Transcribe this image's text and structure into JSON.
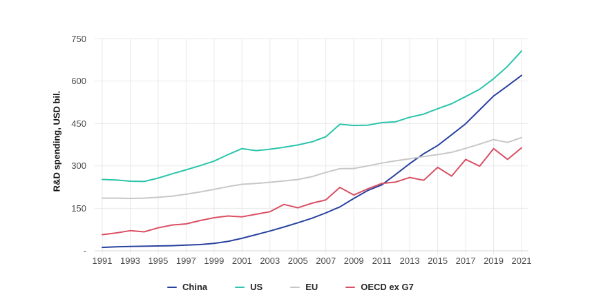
{
  "chart": {
    "y_axis": {
      "title": "R&D spending, USD bil.",
      "ticks": [
        {
          "label": "-",
          "value": 0
        },
        {
          "label": "150",
          "value": 150
        },
        {
          "label": "300",
          "value": 300
        },
        {
          "label": "450",
          "value": 450
        },
        {
          "label": "600",
          "value": 600
        },
        {
          "label": "750",
          "value": 750
        }
      ]
    },
    "x_axis": {
      "tick_labels": [
        "1991",
        "1993",
        "1995",
        "1997",
        "1999",
        "2001",
        "2003",
        "2005",
        "2007",
        "2009",
        "2011",
        "2013",
        "2015",
        "2017",
        "2019",
        "2021"
      ]
    },
    "colors": {
      "china": "#27419e",
      "us": "#2bc4ac",
      "eu": "#c7c7c7",
      "oecd_ex_g7": "#d94f63",
      "gridline": "#e8e8e8",
      "axis_line": "#d4d4d4",
      "tick_text": "#4a4a4a"
    }
  },
  "chart_data": {
    "type": "line",
    "title": "",
    "xlabel": "",
    "ylabel": "R&D spending, USD bil.",
    "ylim": [
      0,
      750
    ],
    "grid": true,
    "legend_position": "bottom",
    "x": [
      1991,
      1992,
      1993,
      1994,
      1995,
      1996,
      1997,
      1998,
      1999,
      2000,
      2001,
      2002,
      2003,
      2004,
      2005,
      2006,
      2007,
      2008,
      2009,
      2010,
      2011,
      2012,
      2013,
      2014,
      2015,
      2016,
      2017,
      2018,
      2019,
      2020,
      2021
    ],
    "series": [
      {
        "name": "China",
        "color": "#27419e",
        "values": [
          12,
          14,
          15,
          16,
          17,
          18,
          20,
          22,
          26,
          33,
          44,
          57,
          70,
          84,
          99,
          115,
          134,
          155,
          185,
          213,
          233,
          270,
          308,
          343,
          372,
          410,
          449,
          498,
          547,
          583,
          620
        ]
      },
      {
        "name": "US",
        "color": "#2bc4ac",
        "values": [
          252,
          250,
          246,
          245,
          257,
          272,
          286,
          301,
          317,
          340,
          361,
          354,
          359,
          366,
          374,
          385,
          403,
          447,
          443,
          444,
          453,
          456,
          472,
          483,
          502,
          520,
          545,
          571,
          608,
          652,
          706
        ]
      },
      {
        "name": "EU",
        "color": "#c7c7c7",
        "values": [
          186,
          186,
          185,
          186,
          189,
          193,
          200,
          208,
          217,
          227,
          235,
          238,
          242,
          247,
          252,
          262,
          277,
          290,
          291,
          300,
          310,
          318,
          325,
          333,
          340,
          348,
          362,
          377,
          393,
          383,
          400
        ]
      },
      {
        "name": "OECD ex G7",
        "color": "#d94f63",
        "values": [
          57,
          63,
          71,
          67,
          81,
          91,
          95,
          107,
          117,
          123,
          120,
          129,
          138,
          164,
          152,
          168,
          180,
          224,
          197,
          219,
          238,
          243,
          259,
          249,
          295,
          264,
          323,
          299,
          361,
          323,
          364
        ]
      }
    ]
  }
}
